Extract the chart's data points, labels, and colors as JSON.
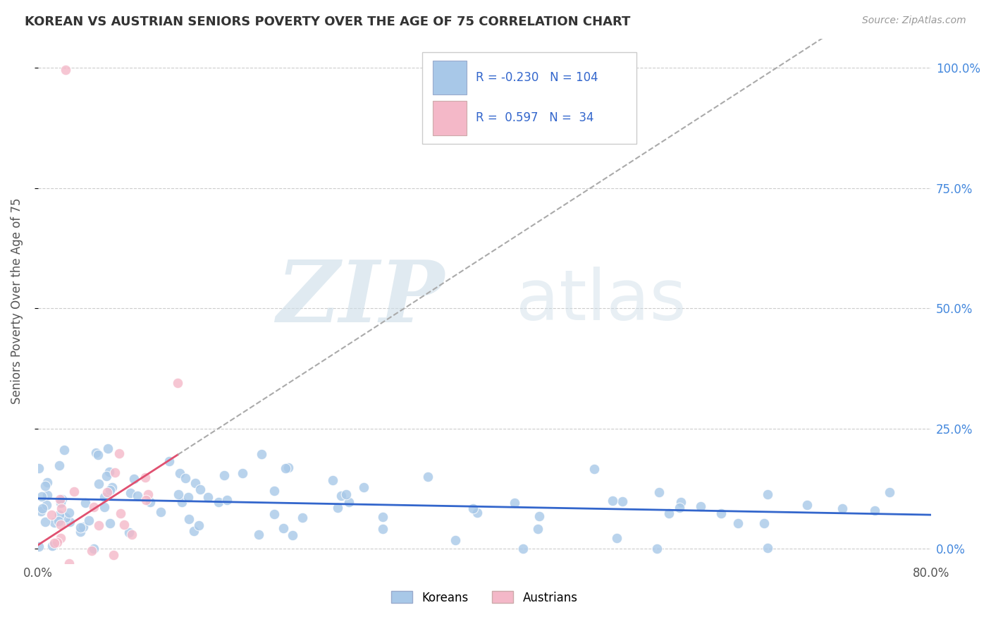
{
  "title": "KOREAN VS AUSTRIAN SENIORS POVERTY OVER THE AGE OF 75 CORRELATION CHART",
  "source": "Source: ZipAtlas.com",
  "ylabel": "Seniors Poverty Over the Age of 75",
  "ytick_labels": [
    "0.0%",
    "25.0%",
    "50.0%",
    "75.0%",
    "100.0%"
  ],
  "ytick_values": [
    0.0,
    0.25,
    0.5,
    0.75,
    1.0
  ],
  "xlim": [
    0.0,
    0.8
  ],
  "ylim": [
    -0.03,
    1.06
  ],
  "plot_ylim": [
    0.0,
    1.0
  ],
  "korean_R": -0.23,
  "korean_N": 104,
  "austrian_R": 0.597,
  "austrian_N": 34,
  "korean_color": "#a8c8e8",
  "austrian_color": "#f4b8c8",
  "korean_line_color": "#3366cc",
  "austrian_line_color": "#e05070",
  "watermark_zip": "ZIP",
  "watermark_atlas": "atlas",
  "background_color": "#ffffff",
  "grid_color": "#cccccc",
  "title_color": "#333333",
  "source_color": "#999999",
  "legend_text_color": "#3366cc",
  "right_tick_color": "#4488dd",
  "seed": 99
}
